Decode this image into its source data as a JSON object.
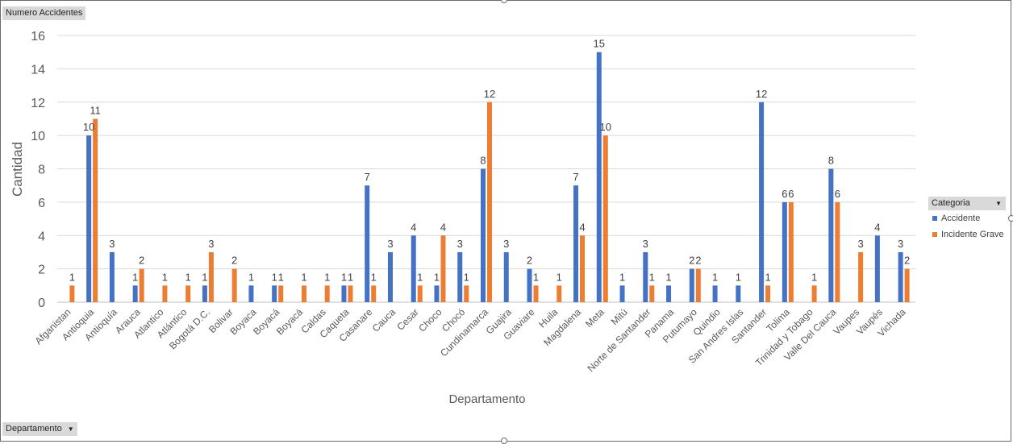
{
  "pivot": {
    "value_field": "Numero Accidentes",
    "axis_field": "Departamento"
  },
  "legend": {
    "header": "Categoria"
  },
  "colors": {
    "accidente": "#4472C4",
    "incidente_grave": "#ED7D31",
    "grid": "#d9d9d9",
    "axis_text": "#595959"
  },
  "chart_data": {
    "type": "bar",
    "title": "",
    "xlabel": "Departamento",
    "ylabel": "Cantidad",
    "ylim": [
      0,
      16
    ],
    "yticks": [
      0,
      2,
      4,
      6,
      8,
      10,
      12,
      14,
      16
    ],
    "grid": true,
    "legend_position": "right",
    "categories": [
      "Afganistan",
      "Antioquia",
      "Antioquía",
      "Arauca",
      "Atlantico",
      "Atlántico",
      "Bogotá D.C.",
      "Bolivar",
      "Boyaca",
      "Boyacá",
      "Boyacá",
      "Caldas",
      "Caqueta",
      "Casanare",
      "Cauca",
      "Cesar",
      "Choco",
      "Chocó",
      "Cundinamarca",
      "Guajira",
      "Guaviare",
      "Huila",
      "Magdalena",
      "Meta",
      "Mitú",
      "Norte de Santander",
      "Panama",
      "Putumayo",
      "Quindio",
      "San Andres Islas",
      "Santander",
      "Tolima",
      "Trinidad y Tobago",
      "Valle Del Cauca",
      "Vaupes",
      "Vaupés",
      "Vichada"
    ],
    "series": [
      {
        "name": "Accidente",
        "values": [
          null,
          10,
          3,
          1,
          null,
          null,
          1,
          null,
          1,
          1,
          null,
          null,
          1,
          7,
          3,
          4,
          1,
          3,
          8,
          3,
          2,
          null,
          7,
          15,
          1,
          3,
          1,
          2,
          1,
          1,
          12,
          6,
          null,
          8,
          null,
          4,
          3
        ]
      },
      {
        "name": "Incidente Grave",
        "values": [
          1,
          11,
          null,
          2,
          1,
          1,
          3,
          2,
          null,
          1,
          1,
          1,
          1,
          1,
          null,
          1,
          4,
          1,
          12,
          null,
          1,
          1,
          4,
          10,
          null,
          1,
          null,
          2,
          null,
          null,
          1,
          6,
          1,
          6,
          3,
          null,
          2
        ]
      }
    ]
  }
}
